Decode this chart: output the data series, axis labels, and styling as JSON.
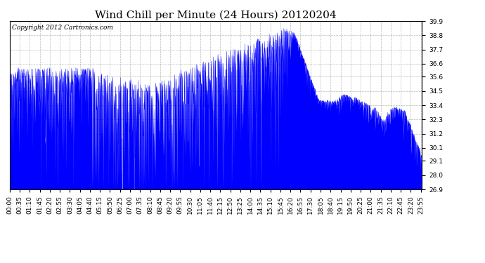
{
  "title": "Wind Chill per Minute (24 Hours) 20120204",
  "copyright": "Copyright 2012 Cartronics.com",
  "ylim": [
    26.9,
    39.9
  ],
  "yticks": [
    26.9,
    28.0,
    29.1,
    30.1,
    31.2,
    32.3,
    33.4,
    34.5,
    35.6,
    36.6,
    37.7,
    38.8,
    39.9
  ],
  "line_color": "blue",
  "fill_color": "blue",
  "background_color": "#ffffff",
  "grid_color": "#aaaaaa",
  "title_fontsize": 11,
  "copyright_fontsize": 6.5,
  "tick_fontsize": 6.5,
  "x_tick_labels": [
    "00:00",
    "00:35",
    "01:10",
    "01:45",
    "02:20",
    "02:55",
    "03:30",
    "04:05",
    "04:40",
    "05:15",
    "05:50",
    "06:25",
    "07:00",
    "07:35",
    "08:10",
    "08:45",
    "09:20",
    "09:55",
    "10:30",
    "11:05",
    "11:40",
    "12:15",
    "12:50",
    "13:25",
    "14:00",
    "14:35",
    "15:10",
    "15:45",
    "16:20",
    "16:55",
    "17:30",
    "18:05",
    "18:40",
    "19:15",
    "19:50",
    "20:25",
    "21:00",
    "21:35",
    "22:10",
    "22:45",
    "23:20",
    "23:55"
  ],
  "num_points": 1440
}
